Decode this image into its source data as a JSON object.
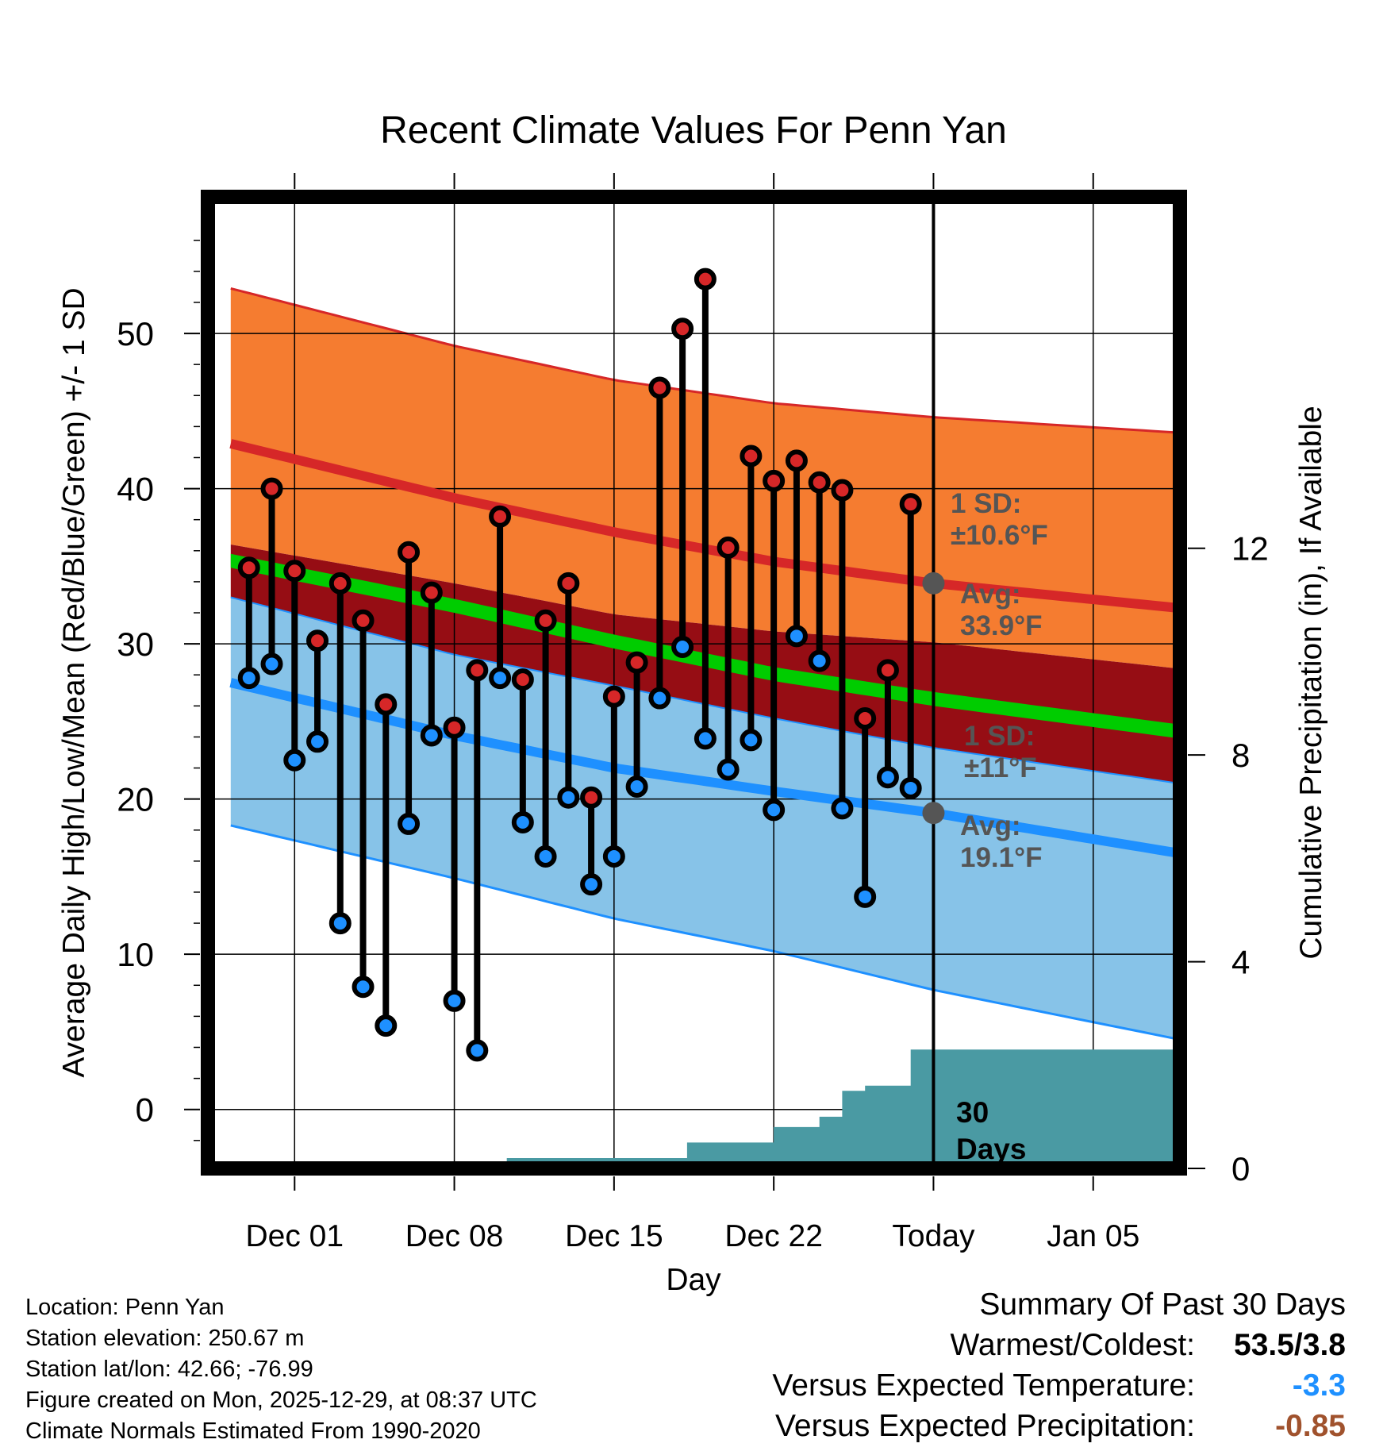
{
  "chart_data": {
    "type": "line",
    "title": "Recent Climate Values For Penn Yan",
    "xlabel": "Day",
    "ylabel": "Average Daily High/Low/Mean (Red/Blue/Green) +/- 1 SD",
    "y2label": "Cumulative Precipitation (in), If Available",
    "ylim": [
      -3.8,
      58.8
    ],
    "y2lim": [
      0,
      18.8
    ],
    "xlim": [
      -3.8,
      38.8
    ],
    "x_ticks": [
      {
        "x": 0,
        "label": "Dec 01"
      },
      {
        "x": 7,
        "label": "Dec 08"
      },
      {
        "x": 14,
        "label": "Dec 15"
      },
      {
        "x": 21,
        "label": "Dec 22"
      },
      {
        "x": 28,
        "label": "Today"
      },
      {
        "x": 35,
        "label": "Jan 05"
      }
    ],
    "y_ticks": [
      0,
      10,
      20,
      30,
      40,
      50
    ],
    "y2_ticks": [
      0,
      4,
      8,
      12
    ],
    "grid": true,
    "series": [
      {
        "name": "High",
        "color": "#d62728",
        "x": [
          -2,
          -1,
          0,
          1,
          2,
          3,
          4,
          5,
          6,
          7,
          8,
          9,
          10,
          11,
          12,
          13,
          14,
          15,
          16,
          17,
          18,
          19,
          20,
          21,
          22,
          23,
          24,
          25,
          26,
          27
        ],
        "values": [
          34.9,
          40.0,
          34.7,
          30.2,
          33.9,
          31.5,
          26.1,
          35.9,
          33.3,
          24.6,
          28.3,
          38.2,
          27.7,
          31.5,
          33.9,
          20.1,
          26.6,
          28.8,
          46.5,
          50.3,
          53.5,
          36.2,
          42.1,
          40.5,
          41.8,
          40.4,
          39.9,
          25.2,
          28.3,
          39.0
        ]
      },
      {
        "name": "Low",
        "color": "#1e90ff",
        "x": [
          -2,
          -1,
          0,
          1,
          2,
          3,
          4,
          5,
          6,
          7,
          8,
          9,
          10,
          11,
          12,
          13,
          14,
          15,
          16,
          17,
          18,
          19,
          20,
          21,
          22,
          23,
          24,
          25,
          26,
          27
        ],
        "values": [
          27.8,
          28.7,
          22.5,
          23.7,
          12.0,
          7.9,
          5.4,
          18.4,
          24.1,
          7.0,
          3.8,
          27.8,
          18.5,
          16.3,
          20.1,
          14.5,
          16.3,
          20.8,
          26.5,
          29.8,
          23.9,
          21.9,
          23.8,
          19.3,
          30.5,
          28.9,
          19.4,
          13.7,
          21.4,
          20.7
        ]
      }
    ],
    "normals": {
      "x": [
        -2.8,
        7,
        14,
        21,
        28,
        38.8
      ],
      "high_mean": [
        42.9,
        39.4,
        37.2,
        35.3,
        33.9,
        32.3
      ],
      "high_upper": [
        52.9,
        49.2,
        47.0,
        45.5,
        44.6,
        43.6
      ],
      "high_lower": [
        36.4,
        33.9,
        31.9,
        30.8,
        30.1,
        28.4
      ],
      "mean_upper": [
        35.8,
        32.9,
        30.6,
        28.5,
        26.9,
        24.8
      ],
      "mean_lower": [
        34.9,
        32.0,
        29.7,
        27.6,
        26.0,
        23.9
      ],
      "low_mean": [
        27.5,
        24.1,
        22.0,
        20.5,
        19.1,
        16.5
      ],
      "low_upper": [
        33.0,
        29.3,
        27.3,
        25.2,
        23.3,
        21.0
      ],
      "low_lower": [
        18.3,
        14.9,
        12.3,
        10.2,
        7.7,
        4.5
      ]
    },
    "precipitation": {
      "x": [
        -2.8,
        0.6,
        0.6,
        9.3,
        9.3,
        17.2,
        17.2,
        21.0,
        21.0,
        23.0,
        23.0,
        24.0,
        24.0,
        25.0,
        25.0,
        27.0,
        27.0,
        29.0,
        29.0,
        38.8
      ],
      "values": [
        0,
        0,
        0.1,
        0.1,
        0.2,
        0.2,
        0.5,
        0.5,
        0.8,
        0.8,
        1.0,
        1.0,
        1.5,
        1.5,
        1.6,
        1.6,
        2.3,
        2.3,
        2.3,
        2.3
      ]
    },
    "today_x": 28,
    "annotations": {
      "high_sd": [
        "1 SD:",
        "±10.6°F"
      ],
      "high_avg": [
        "Avg:",
        "33.9°F"
      ],
      "low_sd": [
        "1 SD:",
        "±11°F"
      ],
      "low_avg": [
        "Avg:",
        "19.1°F"
      ],
      "days": [
        "30",
        "Days"
      ]
    },
    "colors": {
      "high_band": "#f57c30",
      "mean_band": "#960d14",
      "low_band": "#87c3e8",
      "high_line": "#d62728",
      "low_line": "#1e90ff",
      "mean_line": "#00cc00",
      "precip": "#4a9aa3",
      "annotation": "#555555"
    }
  },
  "info": {
    "location": "Location: Penn Yan",
    "elevation": "Station elevation: 250.67 m",
    "latlon": "Station lat/lon: 42.66; -76.99",
    "created": "Figure created on Mon, 2025-12-29, at 08:37 UTC",
    "normals": "Climate Normals Estimated From 1990-2020"
  },
  "summary": {
    "heading": "Summary Of Past 30 Days",
    "warm_cold_label": "Warmest/Coldest:",
    "warm_cold_value": "53.5/3.8",
    "temp_label": "Versus Expected Temperature:",
    "temp_value": "-3.3",
    "temp_color": "#1e90ff",
    "precip_label": "Versus Expected Precipitation:",
    "precip_value": "-0.85",
    "precip_color": "#a0522d"
  }
}
